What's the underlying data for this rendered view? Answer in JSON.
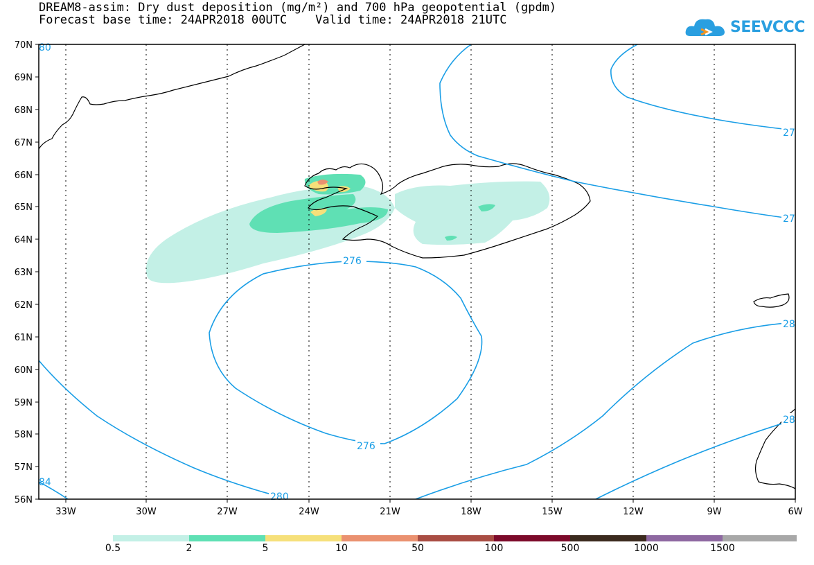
{
  "title": {
    "line1": "DREAM8-assim: Dry dust deposition (mg/m²) and 700 hPa geopotential (gpdm)",
    "line2": "Forecast base time: 24APR2018 00UTC    Valid time: 24APR2018 21UTC"
  },
  "logo": {
    "text": "SEEVCCC",
    "icon": "cloud-icon",
    "color": "#2a9fe0"
  },
  "map": {
    "lat_labels": [
      "70N",
      "69N",
      "68N",
      "67N",
      "66N",
      "65N",
      "64N",
      "63N",
      "62N",
      "61N",
      "60N",
      "59N",
      "58N",
      "57N",
      "56N"
    ],
    "lon_labels": [
      "33W",
      "30W",
      "27W",
      "24W",
      "21W",
      "18W",
      "15W",
      "12W",
      "9W",
      "6W"
    ],
    "contour_color": "#1a9ee6",
    "contour_labels": {
      "low_north": "276",
      "low_south": "276",
      "bottom_left": "280",
      "corner_left": "84",
      "top_left": "80",
      "right_upper": "27",
      "right_middle": "27",
      "right_lower1": "28",
      "right_lower2": "28"
    }
  },
  "colorbar": {
    "colors": [
      "#c3f0e6",
      "#5fe0b4",
      "#f6e07a",
      "#ea9170",
      "#a94d43",
      "#7c0a2a",
      "#3b2a1e",
      "#8e68a1",
      "#a8a8a8"
    ],
    "labels": [
      "0.5",
      "2",
      "5",
      "10",
      "50",
      "100",
      "500",
      "1000",
      "1500"
    ]
  }
}
